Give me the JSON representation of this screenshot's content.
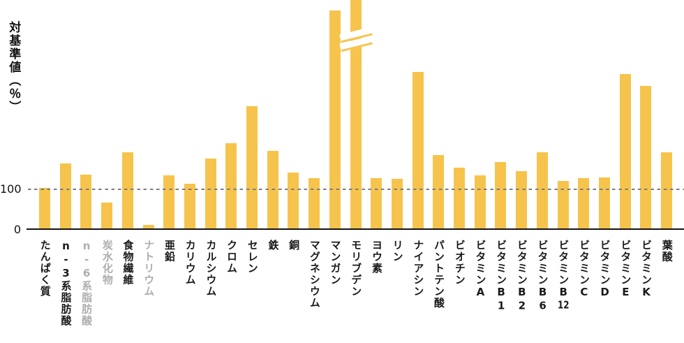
{
  "chart": {
    "y_axis_title": "対基準値（％）",
    "tick_100": "100",
    "tick_0": "0"
  },
  "chart_data": {
    "type": "bar",
    "title": "対基準値（％）",
    "ylabel": "対基準値（％）",
    "ytick_labels": [
      "0",
      "100"
    ],
    "reference_line": 100,
    "reference_line_style": "dashed-gray",
    "grid": false,
    "legend": "none",
    "bar_color": "#F6C44C",
    "label_color": "#1A1A1A",
    "muted_label_color": "#AEAEAE",
    "categories": [
      "たんぱく質",
      "n-3系脂肪酸",
      "n-6系脂肪酸",
      "炭水化物",
      "食物繊維",
      "ナトリウム",
      "亜鉛",
      "カリウム",
      "カルシウム",
      "クロム",
      "セレン",
      "鉄",
      "銅",
      "マグネシウム",
      "マンガン",
      "モリブデン",
      "ヨウ素",
      "リン",
      "ナイアシン",
      "パントテン酸",
      "ビオチン",
      "ビタミンA",
      "ビタミンB1",
      "ビタミンB2",
      "ビタミンB6",
      "ビタミンB12",
      "ビタミンC",
      "ビタミンD",
      "ビタミンE",
      "ビタミンK",
      "葉酸"
    ],
    "values": [
      103,
      163,
      137,
      68,
      192,
      12,
      134,
      114,
      175,
      214,
      306,
      195,
      141,
      128,
      541,
      600,
      127,
      125,
      390,
      185,
      154,
      134,
      168,
      145,
      192,
      120,
      127,
      129,
      385,
      356,
      191
    ],
    "muted_labels": [
      "n-6系脂肪酸",
      "炭水化物",
      "ナトリウム"
    ],
    "clipped": [
      "モリブデン"
    ],
    "axis_break_note": "モリブデン bar exceeds chart top and is shown clipped with a double-slash break mark",
    "ylim_displayed": [
      0,
      567
    ]
  }
}
